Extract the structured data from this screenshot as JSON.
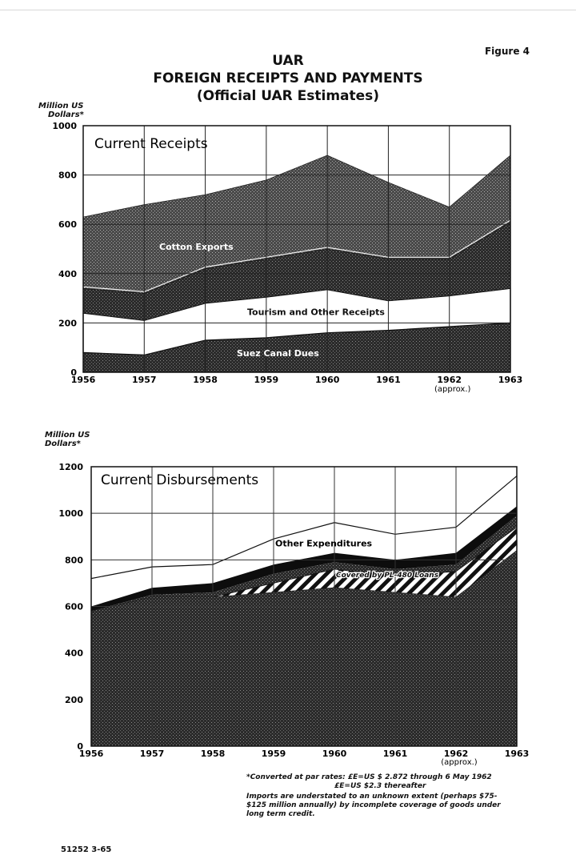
{
  "figure_label": "Figure 4",
  "title_lines": [
    "UAR",
    "FOREIGN RECEIPTS AND PAYMENTS",
    "(Official UAR Estimates)"
  ],
  "chart_data": [
    {
      "type": "area",
      "title": "Current Receipts",
      "ylabel_lines": [
        "Million US",
        "Dollars*"
      ],
      "ylim": [
        0,
        1000
      ],
      "yticks": [
        0,
        200,
        400,
        600,
        800,
        1000
      ],
      "x": [
        "1956",
        "1957",
        "1958",
        "1959",
        "1960",
        "1961",
        "1962",
        "1963"
      ],
      "x_sublabel": {
        "1962": "(approx.)"
      },
      "stacked": true,
      "grid": true,
      "series": [
        {
          "name": "Suez Canal Dues",
          "values": [
            80,
            70,
            130,
            140,
            160,
            170,
            185,
            200
          ]
        },
        {
          "name": "Tourism and Other Receipts",
          "values": [
            160,
            140,
            150,
            165,
            175,
            120,
            125,
            140
          ]
        },
        {
          "name": "",
          "values": [
            100,
            110,
            140,
            155,
            165,
            170,
            150,
            270
          ]
        },
        {
          "name": "Cotton Exports",
          "values": [
            290,
            360,
            300,
            320,
            380,
            310,
            210,
            270
          ]
        }
      ],
      "totals": [
        630,
        680,
        720,
        780,
        880,
        770,
        670,
        880
      ]
    },
    {
      "type": "area",
      "title": "Current Disbursements",
      "ylabel_lines": [
        "Million US",
        "Dollars*"
      ],
      "ylim": [
        0,
        1200
      ],
      "yticks": [
        0,
        200,
        400,
        600,
        800,
        1000,
        1200
      ],
      "x": [
        "1956",
        "1957",
        "1958",
        "1959",
        "1960",
        "1961",
        "1962",
        "1963"
      ],
      "x_sublabel": {
        "1962": "(approx.)"
      },
      "grid": true,
      "series": [
        {
          "name": "",
          "values": [
            580,
            640,
            640,
            660,
            680,
            660,
            640,
            840
          ]
        },
        {
          "name": "",
          "values": [
            580,
            640,
            640,
            700,
            760,
            730,
            750,
            940
          ]
        },
        {
          "name": "",
          "values": [
            580,
            650,
            660,
            740,
            790,
            760,
            780,
            990
          ]
        },
        {
          "name": "",
          "values": [
            600,
            680,
            700,
            780,
            830,
            800,
            830,
            1030
          ]
        },
        {
          "name": "Other Expenditures",
          "values": [
            720,
            770,
            780,
            890,
            960,
            910,
            940,
            1160
          ]
        }
      ],
      "annotation": "Covered by PL-480 Loans",
      "color_gridline": "#333333"
    }
  ],
  "footnote": {
    "lines": [
      "*Converted at par rates: £E=US $ 2.872 through 6 May 1962",
      "£E=US $2.3 thereafter",
      "Imports are understated to an unknown extent (perhaps $75-",
      "$125 million annually) by incomplete coverage of goods under",
      "long term credit."
    ]
  },
  "document_number": "51252 3-65"
}
